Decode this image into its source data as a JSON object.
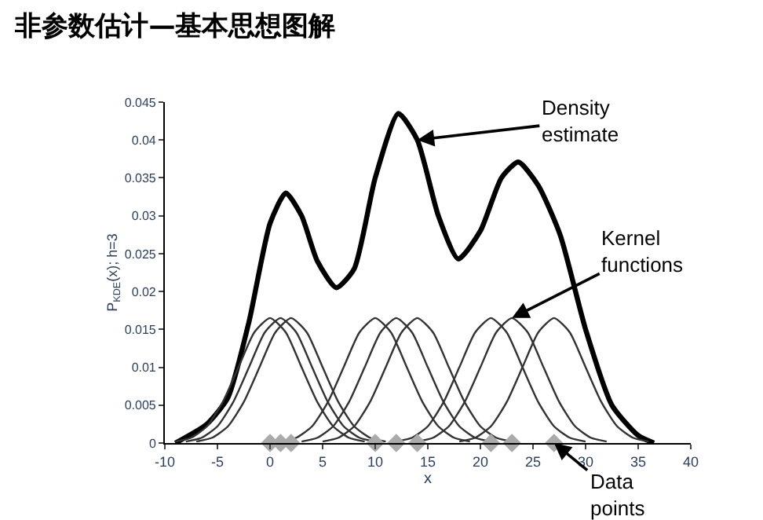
{
  "chart_data": {
    "type": "line",
    "title": "非参数估计—基本思想图解",
    "xlabel": "x",
    "ylabel": "P$_{KDE}$(x); h=3",
    "xlim": [
      -10,
      40
    ],
    "xticks": [
      -10,
      -5,
      0,
      5,
      10,
      15,
      20,
      25,
      30,
      35,
      40
    ],
    "ylim": [
      0,
      0.045
    ],
    "yticks": [
      0,
      0.005,
      0.01,
      0.015,
      0.02,
      0.025,
      0.03,
      0.035,
      0.04,
      0.045
    ],
    "marker": "none",
    "line_style": "solid",
    "series": [
      {
        "color": "#000000",
        "x": [
          -9,
          -6,
          -4,
          -2,
          0,
          1.5,
          3,
          4.5,
          6.3,
          8,
          10,
          12.2,
          14,
          16,
          17.9,
          20,
          22,
          23.6,
          25.5,
          27.6,
          30,
          32.5,
          35,
          36.5
        ],
        "values": [
          0,
          0.0025,
          0.006,
          0.016,
          0.029,
          0.033,
          0.03,
          0.024,
          0.0205,
          0.023,
          0.035,
          0.0435,
          0.04,
          0.03,
          0.0243,
          0.028,
          0.035,
          0.0371,
          0.034,
          0.0274,
          0.015,
          0.005,
          0.001,
          0
        ]
      },
      {
        "color": "#333333",
        "x": [
          -9,
          -7.5,
          -6,
          -4.5,
          -3,
          -1.5,
          0,
          1.5,
          3,
          4.5,
          6,
          7.5,
          9
        ],
        "values": [
          0.0002,
          0.0007,
          0.0022,
          0.0054,
          0.01,
          0.0146,
          0.0165,
          0.0146,
          0.01,
          0.0054,
          0.0022,
          0.0007,
          0.0002
        ]
      },
      {
        "color": "#333333",
        "x": [
          -8,
          -6.5,
          -5,
          -3.5,
          -2,
          -0.5,
          1,
          2.5,
          4,
          5.5,
          7,
          8.5,
          10
        ],
        "values": [
          0.0002,
          0.0007,
          0.0022,
          0.0054,
          0.01,
          0.0146,
          0.0165,
          0.0146,
          0.01,
          0.0054,
          0.0022,
          0.0007,
          0.0002
        ]
      },
      {
        "color": "#333333",
        "x": [
          -7,
          -5.5,
          -4,
          -2.5,
          -1,
          0.5,
          2,
          3.5,
          5,
          6.5,
          8,
          9.5,
          11
        ],
        "values": [
          0.0002,
          0.0007,
          0.0022,
          0.0054,
          0.01,
          0.0146,
          0.0165,
          0.0146,
          0.01,
          0.0054,
          0.0022,
          0.0007,
          0.0002
        ]
      },
      {
        "color": "#333333",
        "x": [
          1,
          2.5,
          4,
          5.5,
          7,
          8.5,
          10,
          11.5,
          13,
          14.5,
          16,
          17.5,
          19
        ],
        "values": [
          0.0002,
          0.0007,
          0.0022,
          0.0054,
          0.01,
          0.0146,
          0.0165,
          0.0146,
          0.01,
          0.0054,
          0.0022,
          0.0007,
          0.0002
        ]
      },
      {
        "color": "#333333",
        "x": [
          3,
          4.5,
          6,
          7.5,
          9,
          10.5,
          12,
          13.5,
          15,
          16.5,
          18,
          19.5,
          21
        ],
        "values": [
          0.0002,
          0.0007,
          0.0022,
          0.0054,
          0.01,
          0.0146,
          0.0165,
          0.0146,
          0.01,
          0.0054,
          0.0022,
          0.0007,
          0.0002
        ]
      },
      {
        "color": "#333333",
        "x": [
          5,
          6.5,
          8,
          9.5,
          11,
          12.5,
          14,
          15.5,
          17,
          18.5,
          20,
          21.5,
          23
        ],
        "values": [
          0.0002,
          0.0007,
          0.0022,
          0.0054,
          0.01,
          0.0146,
          0.0165,
          0.0146,
          0.01,
          0.0054,
          0.0022,
          0.0007,
          0.0002
        ]
      },
      {
        "color": "#333333",
        "x": [
          12,
          13.5,
          15,
          16.5,
          18,
          19.5,
          21,
          22.5,
          24,
          25.5,
          27,
          28.5,
          30
        ],
        "values": [
          0.0002,
          0.0007,
          0.0022,
          0.0054,
          0.01,
          0.0146,
          0.0165,
          0.0146,
          0.01,
          0.0054,
          0.0022,
          0.0007,
          0.0002
        ]
      },
      {
        "color": "#333333",
        "x": [
          14,
          15.5,
          17,
          18.5,
          20,
          21.5,
          23,
          24.5,
          26,
          27.5,
          29,
          30.5,
          32
        ],
        "values": [
          0.0002,
          0.0007,
          0.0022,
          0.0054,
          0.01,
          0.0146,
          0.0165,
          0.0146,
          0.01,
          0.0054,
          0.0022,
          0.0007,
          0.0002
        ]
      },
      {
        "color": "#333333",
        "x": [
          18,
          19.5,
          21,
          22.5,
          24,
          25.5,
          27,
          28.5,
          30,
          31.5,
          33,
          34.5,
          36
        ],
        "values": [
          0.0002,
          0.0007,
          0.0022,
          0.0054,
          0.01,
          0.0146,
          0.0165,
          0.0146,
          0.01,
          0.0054,
          0.0022,
          0.0007,
          0.0002
        ]
      },
      {
        "type": "scatter",
        "marker": "diamond",
        "color": "#aaaaaa",
        "x": [
          0,
          1,
          2,
          10,
          12,
          14,
          21,
          23,
          27
        ],
        "values": [
          0,
          0,
          0,
          0,
          0,
          0,
          0,
          0,
          0
        ]
      }
    ],
    "annotations": [
      {
        "text": "Density\nestimate",
        "x": 14,
        "y": 0.04
      },
      {
        "text": "Kernel\nfunctions",
        "x": 23,
        "y": 0.0165
      },
      {
        "text": "Data\npoints",
        "x": 27,
        "y": 0
      }
    ]
  }
}
